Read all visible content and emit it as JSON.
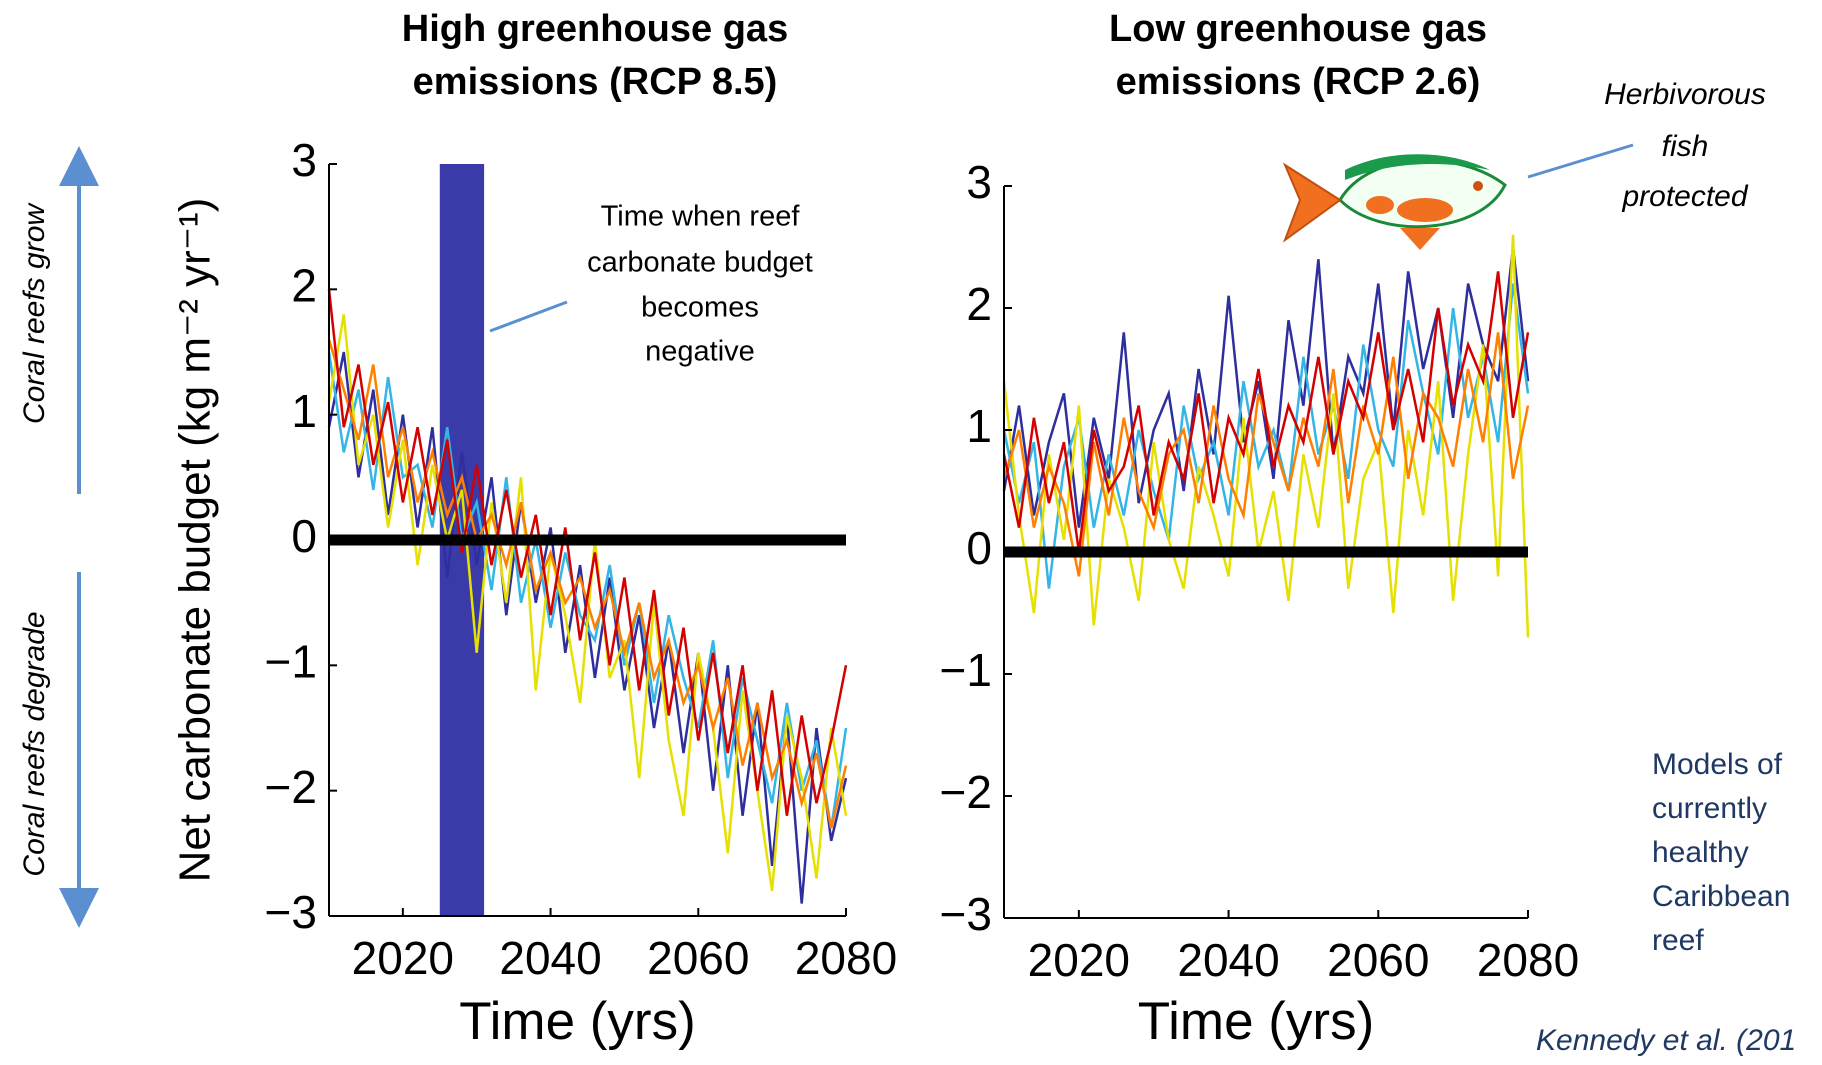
{
  "chart_data": [
    {
      "type": "line",
      "title": [
        "High greenhouse gas",
        "emissions (RCP 8.5)"
      ],
      "ylabel": "Net carbonate budget (kg m⁻² yr⁻¹)",
      "xlabel": "Time (yrs)",
      "annotation": [
        "Time when reef",
        "carbonate budget",
        "becomes",
        "negative"
      ],
      "highlight_span": [
        2025,
        2031
      ],
      "highlight_color": "#3a3aa8",
      "reference_line": 0,
      "xlim": [
        2010,
        2080
      ],
      "xticks": [
        2020,
        2040,
        2060,
        2080
      ],
      "ylim": [
        -3,
        3
      ],
      "yticks": [
        {
          "value": -3,
          "label": "−3"
        },
        {
          "value": -2,
          "label": "−2"
        },
        {
          "value": -1,
          "label": "−1"
        },
        0,
        1,
        2,
        3
      ],
      "x": [
        2010,
        2012,
        2014,
        2016,
        2018,
        2020,
        2022,
        2024,
        2026,
        2028,
        2030,
        2032,
        2034,
        2036,
        2038,
        2040,
        2042,
        2044,
        2046,
        2048,
        2050,
        2052,
        2054,
        2056,
        2058,
        2060,
        2062,
        2064,
        2066,
        2068,
        2070,
        2072,
        2074,
        2076,
        2078,
        2080
      ],
      "series": [
        {
          "color": "#2e2e9e",
          "values": [
            0.9,
            1.5,
            0.5,
            1.2,
            0.2,
            1.0,
            0.1,
            0.9,
            -0.3,
            0.7,
            -0.2,
            0.5,
            -0.6,
            0.3,
            -0.5,
            0.1,
            -0.9,
            -0.2,
            -1.1,
            -0.3,
            -1.2,
            -0.6,
            -1.5,
            -0.8,
            -1.7,
            -0.9,
            -2.0,
            -1.0,
            -2.2,
            -1.3,
            -2.6,
            -1.4,
            -2.9,
            -1.5,
            -2.4,
            -1.9
          ]
        },
        {
          "color": "#33b5e5",
          "values": [
            1.5,
            0.7,
            1.2,
            0.4,
            1.3,
            0.5,
            0.6,
            0.1,
            0.9,
            0.0,
            0.3,
            -0.4,
            0.5,
            -0.5,
            0.0,
            -0.7,
            -0.1,
            -0.6,
            -0.8,
            -0.2,
            -1.0,
            -0.5,
            -1.3,
            -0.6,
            -1.1,
            -1.5,
            -0.8,
            -1.9,
            -1.1,
            -1.6,
            -2.1,
            -1.3,
            -2.0,
            -1.6,
            -2.3,
            -1.5
          ]
        },
        {
          "color": "#e6e000",
          "values": [
            1.1,
            1.8,
            0.6,
            1.0,
            0.1,
            0.8,
            -0.2,
            0.6,
            0.0,
            0.4,
            -0.9,
            0.3,
            -0.5,
            0.5,
            -1.2,
            -0.1,
            -0.6,
            -1.3,
            0.0,
            -1.1,
            -0.8,
            -1.9,
            -0.5,
            -1.6,
            -2.2,
            -0.9,
            -1.5,
            -2.5,
            -1.2,
            -2.0,
            -2.8,
            -1.4,
            -1.9,
            -2.7,
            -1.5,
            -2.2
          ]
        },
        {
          "color": "#ff8000",
          "values": [
            1.6,
            1.2,
            0.8,
            1.4,
            0.5,
            0.9,
            0.3,
            0.7,
            0.2,
            0.5,
            0.0,
            0.2,
            -0.2,
            0.3,
            -0.4,
            -0.1,
            -0.5,
            -0.3,
            -0.7,
            -0.4,
            -0.9,
            -0.5,
            -1.1,
            -0.8,
            -1.3,
            -1.0,
            -1.5,
            -1.1,
            -1.8,
            -1.3,
            -1.9,
            -1.6,
            -2.1,
            -1.7,
            -2.3,
            -1.8
          ]
        },
        {
          "color": "#d40000",
          "values": [
            2.0,
            0.9,
            1.4,
            0.6,
            1.1,
            0.3,
            0.9,
            0.2,
            0.8,
            -0.1,
            0.6,
            -0.2,
            0.4,
            -0.3,
            0.2,
            -0.6,
            0.1,
            -0.8,
            -0.1,
            -1.0,
            -0.3,
            -1.2,
            -0.4,
            -1.4,
            -0.7,
            -1.6,
            -0.9,
            -1.7,
            -1.0,
            -2.0,
            -1.2,
            -2.2,
            -1.4,
            -2.1,
            -1.6,
            -1.0
          ]
        }
      ]
    },
    {
      "type": "line",
      "title": [
        "Low greenhouse gas",
        "emissions (RCP 2.6)"
      ],
      "xlabel": "Time (yrs)",
      "reference_line": 0,
      "xlim": [
        2010,
        2080
      ],
      "xticks": [
        2020,
        2040,
        2060,
        2080
      ],
      "ylim": [
        -3,
        3
      ],
      "yticks": [
        {
          "value": -3,
          "label": "−3"
        },
        {
          "value": -2,
          "label": "−2"
        },
        {
          "value": -1,
          "label": "−1"
        },
        0,
        1,
        2,
        3
      ],
      "x": [
        2010,
        2012,
        2014,
        2016,
        2018,
        2020,
        2022,
        2024,
        2026,
        2028,
        2030,
        2032,
        2034,
        2036,
        2038,
        2040,
        2042,
        2044,
        2046,
        2048,
        2050,
        2052,
        2054,
        2056,
        2058,
        2060,
        2062,
        2064,
        2066,
        2068,
        2070,
        2072,
        2074,
        2076,
        2078,
        2080
      ],
      "series": [
        {
          "color": "#2e2e9e",
          "values": [
            0.5,
            1.2,
            0.3,
            0.9,
            1.3,
            0.2,
            1.1,
            0.6,
            1.8,
            0.4,
            1.0,
            1.3,
            0.5,
            1.5,
            0.8,
            2.1,
            0.9,
            1.4,
            0.6,
            1.9,
            1.2,
            2.4,
            0.8,
            1.6,
            1.3,
            2.2,
            1.0,
            2.3,
            1.5,
            2.0,
            1.1,
            2.2,
            1.7,
            1.4,
            2.5,
            1.4
          ]
        },
        {
          "color": "#33b5e5",
          "values": [
            1.0,
            0.4,
            0.9,
            -0.3,
            0.7,
            1.1,
            0.2,
            0.8,
            0.3,
            1.0,
            0.5,
            0.1,
            1.2,
            0.6,
            0.9,
            0.3,
            1.4,
            0.7,
            1.0,
            0.5,
            1.6,
            0.8,
            1.2,
            0.6,
            1.7,
            1.0,
            0.7,
            1.9,
            1.3,
            0.8,
            2.0,
            1.1,
            1.6,
            0.9,
            2.2,
            1.3
          ]
        },
        {
          "color": "#e6e000",
          "values": [
            1.4,
            0.3,
            -0.5,
            0.8,
            0.1,
            1.2,
            -0.6,
            0.6,
            0.2,
            -0.4,
            0.9,
            0.1,
            -0.3,
            0.7,
            0.3,
            -0.2,
            1.1,
            0.0,
            0.5,
            -0.4,
            0.8,
            0.2,
            1.3,
            -0.3,
            0.6,
            0.9,
            -0.5,
            1.0,
            0.3,
            1.4,
            -0.4,
            0.8,
            1.7,
            -0.2,
            2.6,
            -0.7
          ]
        },
        {
          "color": "#ff8000",
          "values": [
            0.6,
            1.0,
            0.2,
            0.7,
            0.4,
            -0.2,
            0.9,
            0.3,
            1.1,
            0.5,
            0.2,
            0.8,
            1.0,
            0.4,
            1.2,
            0.6,
            0.3,
            1.3,
            0.9,
            0.5,
            1.1,
            0.7,
            1.5,
            0.4,
            1.2,
            0.8,
            1.6,
            0.6,
            1.3,
            1.1,
            0.7,
            1.5,
            0.9,
            1.8,
            0.6,
            1.2
          ]
        },
        {
          "color": "#d40000",
          "values": [
            0.8,
            0.2,
            1.1,
            0.4,
            0.9,
            0.0,
            1.0,
            0.5,
            0.7,
            1.2,
            0.3,
            0.9,
            0.6,
            1.3,
            0.4,
            1.1,
            0.8,
            1.5,
            0.7,
            1.2,
            0.9,
            1.6,
            0.8,
            1.4,
            1.1,
            1.8,
            1.0,
            1.5,
            0.9,
            2.0,
            1.2,
            1.7,
            1.4,
            2.3,
            1.1,
            1.8
          ]
        }
      ]
    }
  ],
  "side_labels": {
    "grow": "Coral reefs grow",
    "degrade": "Coral reefs degrade"
  },
  "fish_label": [
    "Herbivorous",
    "fish",
    "protected"
  ],
  "models_note": [
    "Models of",
    "currently",
    "healthy",
    "Caribbean",
    "reef"
  ],
  "citation": "Kennedy et al. (201"
}
